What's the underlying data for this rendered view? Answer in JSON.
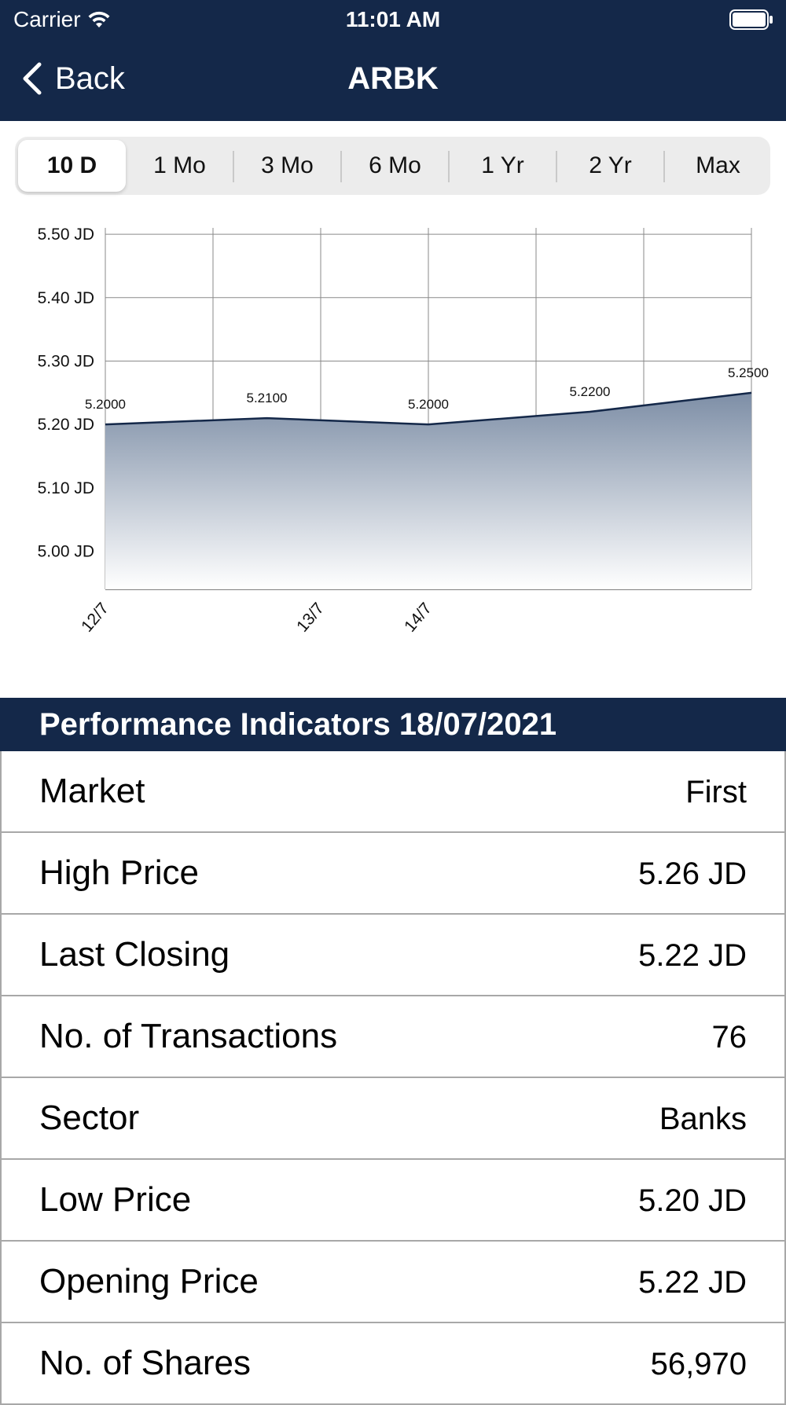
{
  "status_bar": {
    "carrier": "Carrier",
    "time": "11:01 AM"
  },
  "nav": {
    "back_label": "Back",
    "title": "ARBK"
  },
  "ranges": [
    {
      "label": "10 D",
      "selected": true
    },
    {
      "label": "1 Mo",
      "selected": false
    },
    {
      "label": "3 Mo",
      "selected": false
    },
    {
      "label": "6 Mo",
      "selected": false
    },
    {
      "label": "1 Yr",
      "selected": false
    },
    {
      "label": "2 Yr",
      "selected": false
    },
    {
      "label": "Max",
      "selected": false
    }
  ],
  "chart_data": {
    "type": "area",
    "y_tick_labels": [
      "5.50 JD",
      "5.40 JD",
      "5.30 JD",
      "5.20 JD",
      "5.10 JD",
      "5.00 JD"
    ],
    "y_ticks": [
      5.5,
      5.4,
      5.3,
      5.2,
      5.1,
      5.0
    ],
    "x_tick_labels": [
      "12/7",
      "13/7",
      "14/7"
    ],
    "points": [
      {
        "label": "5.2000",
        "value": 5.2
      },
      {
        "label": "5.2100",
        "value": 5.21
      },
      {
        "label": "5.2000",
        "value": 5.2
      },
      {
        "label": "5.2200",
        "value": 5.22
      },
      {
        "label": "5.2500",
        "value": 5.25
      }
    ],
    "ylim": [
      4.94,
      5.51
    ],
    "grid": true,
    "colors": {
      "line": "#142849",
      "fill_top": "#7d8ea6",
      "fill_bottom": "#ffffff",
      "grid": "#8a8a8a"
    }
  },
  "indicators": {
    "title": "Performance Indicators 18/07/2021",
    "rows": [
      {
        "label": "Market",
        "value": "First"
      },
      {
        "label": "High Price",
        "value": "5.26 JD"
      },
      {
        "label": "Last Closing",
        "value": "5.22 JD"
      },
      {
        "label": "No. of Transactions",
        "value": "76"
      },
      {
        "label": "Sector",
        "value": "Banks"
      },
      {
        "label": "Low Price",
        "value": "5.20 JD"
      },
      {
        "label": "Opening Price",
        "value": "5.22 JD"
      },
      {
        "label": "No. of Shares",
        "value": "56,970"
      }
    ]
  },
  "colors": {
    "header_bg": "#142849",
    "segment_bg": "#ececec"
  }
}
